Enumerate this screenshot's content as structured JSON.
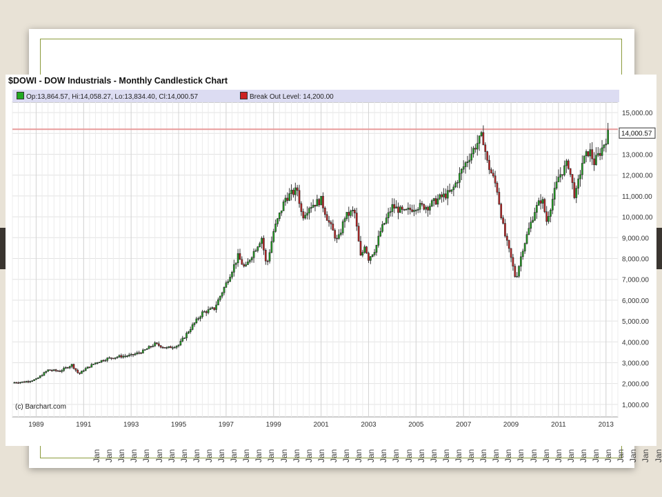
{
  "slide": {
    "background": "#e8e2d6",
    "band_color": "#3a3530",
    "frame_color": "#8a9a3a"
  },
  "chart_data": {
    "type": "candlestick",
    "title": "$DOWI - DOW Industrials - Monthly Candlestick Chart",
    "legend": [
      {
        "label": "Op:13,864.57, Hi:14,058.27, Lo:13,834.40, Cl:14,000.57",
        "color": "#22aa22"
      },
      {
        "label": "Break Out Level: 14,200.00",
        "color": "#cc2222"
      }
    ],
    "credit": "(c) Barchart.com",
    "x_tick_labels": [
      "1989",
      "1991",
      "1993",
      "1995",
      "1997",
      "1999",
      "2001",
      "2003",
      "2005",
      "2007",
      "2009",
      "2011",
      "2013"
    ],
    "y_tick_labels": [
      "1,000.00",
      "2,000.00",
      "3,000.00",
      "4,000.00",
      "5,000.00",
      "6,000.00",
      "7,000.00",
      "8,000.00",
      "9,000.00",
      "10,000.00",
      "11,000.00",
      "12,000.00",
      "13,000.00",
      "14,000.00",
      "15,000.00"
    ],
    "ylim": [
      400,
      15500
    ],
    "xlim": [
      1988.0,
      2013.5
    ],
    "break_out_level": 14200,
    "last_value_label": "14,000.57",
    "up_color": "#22aa22",
    "down_color": "#cc2222",
    "break_out_color": "#e89a9a",
    "monthly_close": [
      [
        1988.0,
        2050
      ],
      [
        1988.5,
        2080
      ],
      [
        1989.0,
        2200
      ],
      [
        1989.5,
        2650
      ],
      [
        1990.0,
        2600
      ],
      [
        1990.5,
        2900
      ],
      [
        1990.8,
        2450
      ],
      [
        1991.0,
        2650
      ],
      [
        1991.5,
        3000
      ],
      [
        1992.0,
        3200
      ],
      [
        1992.5,
        3300
      ],
      [
        1993.0,
        3350
      ],
      [
        1993.5,
        3550
      ],
      [
        1994.0,
        3900
      ],
      [
        1994.5,
        3700
      ],
      [
        1995.0,
        3850
      ],
      [
        1995.5,
        4650
      ],
      [
        1996.0,
        5400
      ],
      [
        1996.5,
        5600
      ],
      [
        1997.0,
        6800
      ],
      [
        1997.5,
        8100
      ],
      [
        1997.8,
        7500
      ],
      [
        1998.0,
        8000
      ],
      [
        1998.5,
        9000
      ],
      [
        1998.7,
        7600
      ],
      [
        1999.0,
        9300
      ],
      [
        1999.5,
        10900
      ],
      [
        2000.0,
        11300
      ],
      [
        2000.2,
        10000
      ],
      [
        2000.5,
        10500
      ],
      [
        2001.0,
        10800
      ],
      [
        2001.3,
        9800
      ],
      [
        2001.7,
        8800
      ],
      [
        2002.0,
        10000
      ],
      [
        2002.4,
        10300
      ],
      [
        2002.7,
        7800
      ],
      [
        2002.8,
        8800
      ],
      [
        2003.0,
        8000
      ],
      [
        2003.3,
        8500
      ],
      [
        2003.5,
        9300
      ],
      [
        2004.0,
        10500
      ],
      [
        2004.5,
        10200
      ],
      [
        2005.0,
        10500
      ],
      [
        2005.5,
        10500
      ],
      [
        2006.0,
        10900
      ],
      [
        2006.5,
        11200
      ],
      [
        2007.0,
        12400
      ],
      [
        2007.5,
        13400
      ],
      [
        2007.8,
        13900
      ],
      [
        2008.0,
        12600
      ],
      [
        2008.4,
        11400
      ],
      [
        2008.7,
        9300
      ],
      [
        2009.0,
        8000
      ],
      [
        2009.2,
        7000
      ],
      [
        2009.5,
        8500
      ],
      [
        2010.0,
        10300
      ],
      [
        2010.3,
        10900
      ],
      [
        2010.5,
        9800
      ],
      [
        2011.0,
        11900
      ],
      [
        2011.4,
        12600
      ],
      [
        2011.7,
        10900
      ],
      [
        2012.0,
        12600
      ],
      [
        2012.3,
        13200
      ],
      [
        2012.5,
        12600
      ],
      [
        2012.8,
        13200
      ],
      [
        2013.1,
        14000
      ]
    ]
  }
}
